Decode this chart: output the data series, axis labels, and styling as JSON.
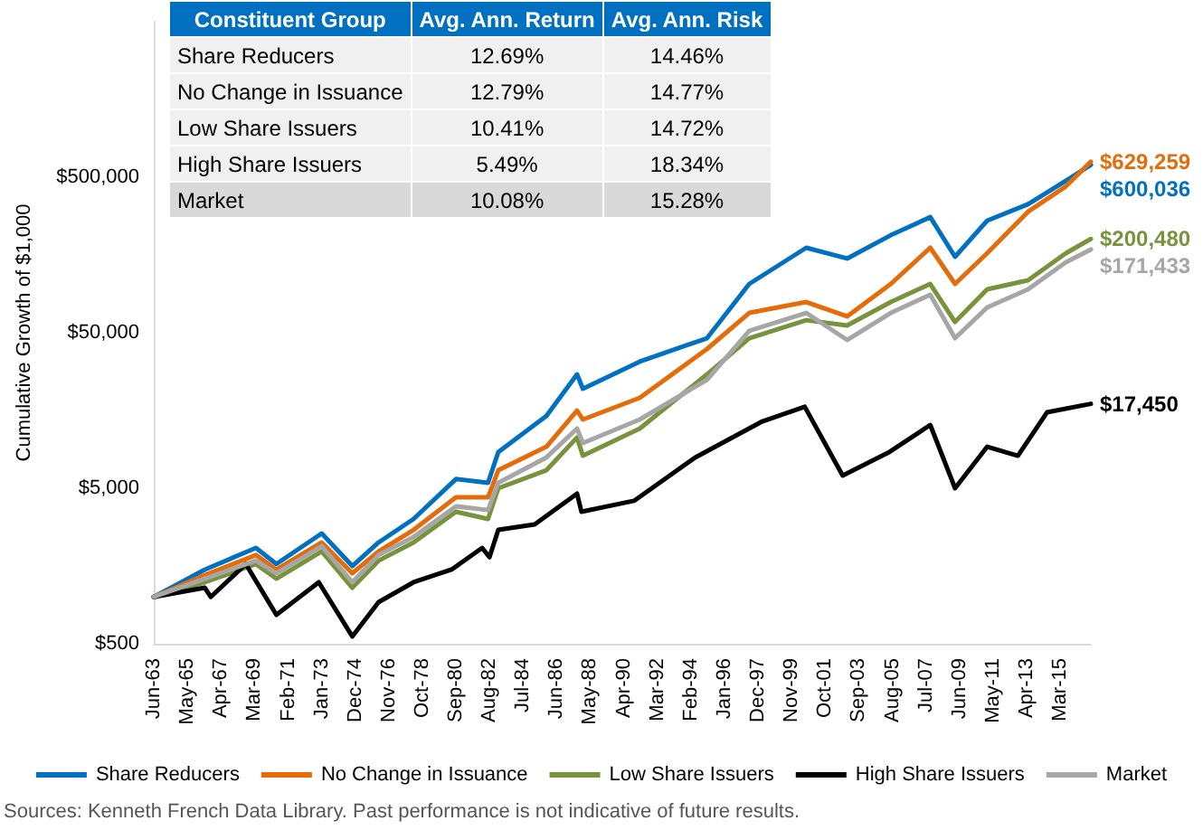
{
  "chart_data": {
    "type": "line",
    "ylabel": "Cumulative Growth of $1,000",
    "log": "y",
    "grid": false,
    "legend": "bottom",
    "marker": "none",
    "line_style": "solid",
    "x": [
      "1963-06",
      "1966-05",
      "1969-04",
      "1970-06",
      "1973-01",
      "1974-10",
      "1976-04",
      "1978-04",
      "1980-09",
      "1982-07",
      "1983-02",
      "1985-11",
      "1987-08",
      "1987-12",
      "1991-03",
      "1995-01",
      "1997-06",
      "2000-09",
      "2003-01",
      "2005-07",
      "2007-10",
      "2009-03",
      "2011-01",
      "2013-05",
      "2015-07",
      "2016-12"
    ],
    "xlim": [
      "1963-06",
      "2016-12"
    ],
    "xticks": [
      {
        "value": "1963-06",
        "label": "Jun-63"
      },
      {
        "value": "1965-05",
        "label": "May-65"
      },
      {
        "value": "1967-04",
        "label": "Apr-67"
      },
      {
        "value": "1969-03",
        "label": "Mar-69"
      },
      {
        "value": "1971-02",
        "label": "Feb-71"
      },
      {
        "value": "1973-01",
        "label": "Jan-73"
      },
      {
        "value": "1974-12",
        "label": "Dec-74"
      },
      {
        "value": "1976-11",
        "label": "Nov-76"
      },
      {
        "value": "1978-10",
        "label": "Oct-78"
      },
      {
        "value": "1980-09",
        "label": "Sep-80"
      },
      {
        "value": "1982-08",
        "label": "Aug-82"
      },
      {
        "value": "1984-07",
        "label": "Jul-84"
      },
      {
        "value": "1986-06",
        "label": "Jun-86"
      },
      {
        "value": "1988-05",
        "label": "May-88"
      },
      {
        "value": "1990-04",
        "label": "Apr-90"
      },
      {
        "value": "1992-03",
        "label": "Mar-92"
      },
      {
        "value": "1994-02",
        "label": "Feb-94"
      },
      {
        "value": "1996-01",
        "label": "Jan-96"
      },
      {
        "value": "1997-12",
        "label": "Dec-97"
      },
      {
        "value": "1999-11",
        "label": "Nov-99"
      },
      {
        "value": "2001-10",
        "label": "Oct-01"
      },
      {
        "value": "2003-09",
        "label": "Sep-03"
      },
      {
        "value": "2005-08",
        "label": "Aug-05"
      },
      {
        "value": "2007-07",
        "label": "Jul-07"
      },
      {
        "value": "2009-06",
        "label": "Jun-09"
      },
      {
        "value": "2011-05",
        "label": "May-11"
      },
      {
        "value": "2013-04",
        "label": "Apr-13"
      },
      {
        "value": "2015-03",
        "label": "Mar-15"
      }
    ],
    "ylim": [
      500,
      5000000
    ],
    "yticks": [
      {
        "value": 500,
        "label": "$500"
      },
      {
        "value": 5000,
        "label": "$5,000"
      },
      {
        "value": 50000,
        "label": "$50,000"
      },
      {
        "value": 500000,
        "label": "$500,000"
      }
    ],
    "series": [
      {
        "name": "Share Reducers",
        "color": "#0070c0",
        "values": [
          1000,
          1500,
          2065,
          1630,
          2560,
          1580,
          2240,
          3170,
          5730,
          5420,
          8550,
          14600,
          27000,
          21800,
          32600,
          46100,
          103000,
          176000,
          150000,
          212000,
          277000,
          154000,
          263000,
          335000,
          474000,
          600036
        ]
      },
      {
        "name": "No Change in Issuance",
        "color": "#e46c0a",
        "values": [
          1000,
          1380,
          1860,
          1500,
          2240,
          1420,
          1960,
          2700,
          4370,
          4370,
          6530,
          9250,
          15800,
          13830,
          19070,
          39300,
          67100,
          78800,
          63700,
          103000,
          176000,
          103000,
          162500,
          300000,
          437000,
          629259
        ]
      },
      {
        "name": "Low Share Issuers",
        "color": "#77933c",
        "values": [
          1000,
          1243,
          1626,
          1310,
          1960,
          1146,
          1710,
          2240,
          3530,
          3170,
          5000,
          6530,
          10600,
          8090,
          12100,
          27000,
          46100,
          60200,
          55700,
          78800,
          103000,
          58700,
          95000,
          108700,
          162500,
          200480
        ]
      },
      {
        "name": "High Share Issuers",
        "color": "#000000",
        "x": [
          "1963-06",
          "1966-05",
          "1966-09",
          "1968-09",
          "1970-06",
          "1972-11",
          "1974-10",
          "1976-04",
          "1978-04",
          "1980-06",
          "1982-03",
          "1982-08",
          "1983-02",
          "1985-03",
          "1987-08",
          "1987-11",
          "1990-11",
          "1994-05",
          "1998-03",
          "2000-08",
          "2002-10",
          "2005-06",
          "2007-10",
          "2009-03",
          "2011-01",
          "2012-10",
          "2014-06",
          "2016-12"
        ],
        "values": [
          1000,
          1146,
          1000,
          1626,
          767,
          1243,
          557,
          925,
          1243,
          1500,
          2065,
          1800,
          2700,
          2925,
          4615,
          3530,
          4150,
          7890,
          13460,
          16700,
          6030,
          8550,
          12760,
          5000,
          9250,
          8090,
          15380,
          17450
        ]
      },
      {
        "name": "Market",
        "color": "#a6a6a6",
        "values": [
          1000,
          1310,
          1710,
          1420,
          2120,
          1243,
          1860,
          2430,
          3830,
          3620,
          5420,
          7890,
          12100,
          9770,
          13830,
          24900,
          51400,
          67100,
          44900,
          67100,
          87700,
          46100,
          72800,
          95000,
          142000,
          171433
        ]
      }
    ],
    "annotations": [
      {
        "text": "$600,036",
        "x": "2016-12",
        "y": 600036
      },
      {
        "text": "$629,259",
        "x": "2016-12",
        "y": 629259
      },
      {
        "text": "$200,480",
        "x": "2016-12",
        "y": 200480
      },
      {
        "text": "$17,450",
        "x": "2016-12",
        "y": 17450
      },
      {
        "text": "$171,433",
        "x": "2016-12",
        "y": 171433
      },
      "Constituent Group",
      "Avg. Ann. Return",
      "Avg. Ann. Risk",
      "Share Reducers",
      "12.69%",
      "14.46%",
      "No Change in Issuance",
      "12.79%",
      "14.77%",
      "Low Share Issuers",
      "10.41%",
      "14.72%",
      "High Share Issuers",
      "5.49%",
      "18.34%",
      "Market",
      "10.08%",
      "15.28%",
      "Sources: Kenneth French Data Library. Past performance is not indicative of future results."
    ]
  }
}
